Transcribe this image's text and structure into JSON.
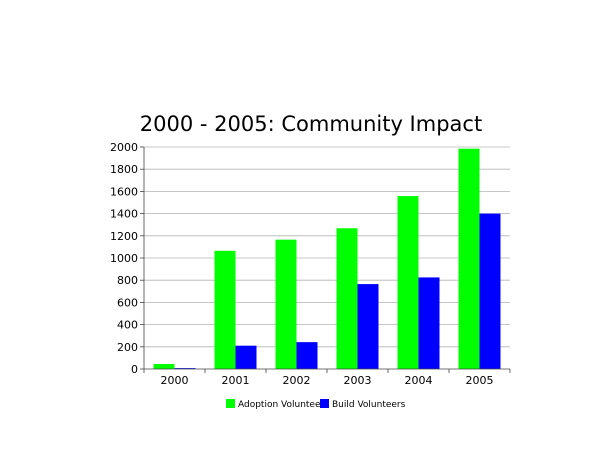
{
  "chart_data": {
    "type": "bar",
    "title": "2000 - 2005: Community Impact",
    "xlabel": "",
    "ylabel": "",
    "categories": [
      "2000",
      "2001",
      "2002",
      "2003",
      "2004",
      "2005"
    ],
    "series": [
      {
        "name": "Adoption Volunteers",
        "color": "#00ff00",
        "values": [
          45,
          1065,
          1165,
          1268,
          1558,
          1985
        ]
      },
      {
        "name": "Build Volunteers",
        "color": "#0000ff",
        "values": [
          8,
          210,
          242,
          765,
          825,
          1400
        ]
      }
    ],
    "ylim": [
      0,
      2000
    ],
    "yticks": [
      "0",
      "200",
      "400",
      "600",
      "800",
      "1000",
      "1200",
      "1400",
      "1600",
      "1800",
      "2000"
    ],
    "grid": true,
    "legend_position": "bottom"
  }
}
